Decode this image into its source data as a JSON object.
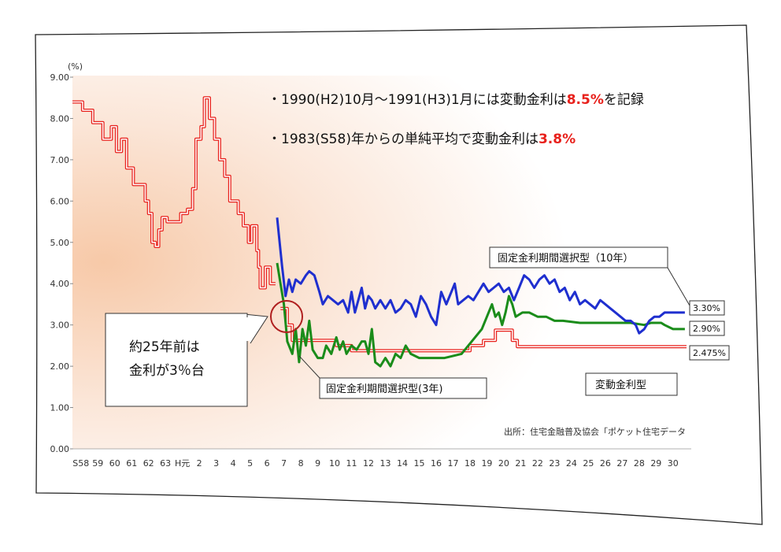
{
  "chart_data": {
    "type": "line",
    "yunit": "(%)",
    "yticks": [
      "9.00",
      "8.00",
      "7.00",
      "6.00",
      "5.00",
      "4.00",
      "3.00",
      "2.00",
      "1.00",
      "0.00"
    ],
    "xticks": [
      "S58",
      "59",
      "60",
      "61",
      "62",
      "63",
      "H元",
      "2",
      "3",
      "4",
      "5",
      "6",
      "7",
      "8",
      "9",
      "10",
      "11",
      "12",
      "13",
      "14",
      "15",
      "16",
      "17",
      "18",
      "19",
      "20",
      "21",
      "22",
      "23",
      "24",
      "25",
      "26",
      "27",
      "28",
      "29",
      "30"
    ],
    "ylim": [
      0,
      9
    ],
    "xlim": [
      1983,
      2019.3
    ],
    "series": [
      {
        "name": "変動金利型",
        "color": "#e8211c",
        "step": true,
        "points": [
          [
            1983.0,
            8.4
          ],
          [
            1983.6,
            8.2
          ],
          [
            1984.2,
            7.9
          ],
          [
            1984.8,
            7.5
          ],
          [
            1985.3,
            7.8
          ],
          [
            1985.6,
            7.2
          ],
          [
            1985.9,
            7.5
          ],
          [
            1986.2,
            6.8
          ],
          [
            1986.6,
            6.4
          ],
          [
            1987.3,
            6.0
          ],
          [
            1987.5,
            5.7
          ],
          [
            1987.7,
            5.0
          ],
          [
            1987.9,
            4.9
          ],
          [
            1988.1,
            5.3
          ],
          [
            1988.3,
            5.6
          ],
          [
            1988.6,
            5.5
          ],
          [
            1989.0,
            5.5
          ],
          [
            1989.4,
            5.7
          ],
          [
            1989.8,
            5.8
          ],
          [
            1990.1,
            6.3
          ],
          [
            1990.3,
            7.5
          ],
          [
            1990.6,
            7.8
          ],
          [
            1990.8,
            8.5
          ],
          [
            1991.1,
            8.0
          ],
          [
            1991.4,
            7.5
          ],
          [
            1991.7,
            7.0
          ],
          [
            1992.0,
            6.6
          ],
          [
            1992.3,
            6.0
          ],
          [
            1992.8,
            5.7
          ],
          [
            1993.1,
            5.4
          ],
          [
            1993.4,
            5.0
          ],
          [
            1993.6,
            5.4
          ],
          [
            1993.9,
            4.8
          ],
          [
            1994.0,
            4.4
          ],
          [
            1994.1,
            3.9
          ],
          [
            1994.4,
            4.4
          ],
          [
            1994.7,
            4.0
          ],
          [
            1995.0,
            4.0
          ]
        ]
      },
      {
        "name": "変動金利型",
        "color": "#e8211c",
        "step": true,
        "points": [
          [
            1995.3,
            3.4
          ],
          [
            1995.7,
            3.0
          ],
          [
            1996.0,
            2.625
          ],
          [
            1997.0,
            2.625
          ],
          [
            1998.0,
            2.625
          ],
          [
            1998.6,
            2.5
          ],
          [
            1999.5,
            2.375
          ],
          [
            2000.0,
            2.375
          ],
          [
            2001.5,
            2.375
          ],
          [
            2003.0,
            2.375
          ],
          [
            2005.0,
            2.375
          ],
          [
            2006.5,
            2.5
          ],
          [
            2007.3,
            2.625
          ],
          [
            2008.0,
            2.875
          ],
          [
            2009.0,
            2.625
          ],
          [
            2009.3,
            2.475
          ],
          [
            2012.0,
            2.475
          ],
          [
            2015.0,
            2.475
          ],
          [
            2018.0,
            2.475
          ],
          [
            2019.3,
            2.475
          ]
        ]
      },
      {
        "name": "固定金利期間選択型(3年)",
        "color": "#1a8c1a",
        "step": false,
        "points": [
          [
            1995.1,
            4.5
          ],
          [
            1995.3,
            4.0
          ],
          [
            1995.5,
            3.5
          ],
          [
            1995.7,
            2.6
          ],
          [
            1996.0,
            2.3
          ],
          [
            1996.2,
            2.9
          ],
          [
            1996.4,
            2.1
          ],
          [
            1996.6,
            2.9
          ],
          [
            1996.8,
            2.5
          ],
          [
            1997.0,
            3.1
          ],
          [
            1997.2,
            2.4
          ],
          [
            1997.5,
            2.2
          ],
          [
            1997.8,
            2.2
          ],
          [
            1998.0,
            2.5
          ],
          [
            1998.3,
            2.3
          ],
          [
            1998.6,
            2.7
          ],
          [
            1998.8,
            2.4
          ],
          [
            1999.0,
            2.6
          ],
          [
            1999.2,
            2.3
          ],
          [
            1999.5,
            2.5
          ],
          [
            1999.8,
            2.4
          ],
          [
            2000.1,
            2.6
          ],
          [
            2000.3,
            2.6
          ],
          [
            2000.5,
            2.3
          ],
          [
            2000.7,
            2.9
          ],
          [
            2000.9,
            2.1
          ],
          [
            2001.2,
            2.0
          ],
          [
            2001.5,
            2.2
          ],
          [
            2001.8,
            2.0
          ],
          [
            2002.1,
            2.3
          ],
          [
            2002.4,
            2.2
          ],
          [
            2002.7,
            2.5
          ],
          [
            2003.0,
            2.3
          ],
          [
            2003.5,
            2.2
          ],
          [
            2004.0,
            2.2
          ],
          [
            2005.0,
            2.2
          ],
          [
            2006.0,
            2.3
          ],
          [
            2006.4,
            2.5
          ],
          [
            2006.8,
            2.7
          ],
          [
            2007.2,
            2.9
          ],
          [
            2007.6,
            3.3
          ],
          [
            2007.8,
            3.5
          ],
          [
            2008.0,
            3.2
          ],
          [
            2008.2,
            3.3
          ],
          [
            2008.4,
            3.0
          ],
          [
            2008.6,
            3.3
          ],
          [
            2008.8,
            3.7
          ],
          [
            2009.0,
            3.5
          ],
          [
            2009.2,
            3.2
          ],
          [
            2009.6,
            3.3
          ],
          [
            2010.0,
            3.3
          ],
          [
            2010.5,
            3.2
          ],
          [
            2011.0,
            3.2
          ],
          [
            2011.5,
            3.1
          ],
          [
            2012.0,
            3.1
          ],
          [
            2013.0,
            3.05
          ],
          [
            2014.0,
            3.05
          ],
          [
            2015.0,
            3.05
          ],
          [
            2016.0,
            3.05
          ],
          [
            2016.8,
            3.0
          ],
          [
            2017.2,
            3.05
          ],
          [
            2017.8,
            3.05
          ],
          [
            2018.0,
            3.0
          ],
          [
            2018.5,
            2.9
          ],
          [
            2019.2,
            2.9
          ]
        ]
      },
      {
        "name": "固定金利期間選択型(10年)",
        "color": "#1f2fcf",
        "step": false,
        "points": [
          [
            1995.1,
            5.6
          ],
          [
            1995.2,
            5.2
          ],
          [
            1995.4,
            4.4
          ],
          [
            1995.6,
            3.7
          ],
          [
            1995.8,
            4.1
          ],
          [
            1996.0,
            3.8
          ],
          [
            1996.2,
            4.1
          ],
          [
            1996.5,
            4.0
          ],
          [
            1996.8,
            4.2
          ],
          [
            1997.0,
            4.3
          ],
          [
            1997.3,
            4.2
          ],
          [
            1997.6,
            3.8
          ],
          [
            1997.8,
            3.5
          ],
          [
            1998.1,
            3.7
          ],
          [
            1998.4,
            3.6
          ],
          [
            1998.7,
            3.5
          ],
          [
            1999.0,
            3.6
          ],
          [
            1999.3,
            3.3
          ],
          [
            1999.5,
            3.8
          ],
          [
            1999.7,
            3.3
          ],
          [
            1999.9,
            3.6
          ],
          [
            2000.1,
            3.9
          ],
          [
            2000.3,
            3.4
          ],
          [
            2000.5,
            3.7
          ],
          [
            2000.7,
            3.6
          ],
          [
            2000.9,
            3.4
          ],
          [
            2001.2,
            3.6
          ],
          [
            2001.5,
            3.4
          ],
          [
            2001.8,
            3.6
          ],
          [
            2002.1,
            3.3
          ],
          [
            2002.4,
            3.4
          ],
          [
            2002.7,
            3.6
          ],
          [
            2003.0,
            3.5
          ],
          [
            2003.3,
            3.2
          ],
          [
            2003.6,
            3.7
          ],
          [
            2003.9,
            3.5
          ],
          [
            2004.2,
            3.2
          ],
          [
            2004.5,
            3.0
          ],
          [
            2004.8,
            3.8
          ],
          [
            2005.1,
            3.5
          ],
          [
            2005.4,
            3.8
          ],
          [
            2005.6,
            4.0
          ],
          [
            2005.8,
            3.5
          ],
          [
            2006.1,
            3.6
          ],
          [
            2006.4,
            3.7
          ],
          [
            2006.7,
            3.6
          ],
          [
            2007.0,
            3.8
          ],
          [
            2007.3,
            4.0
          ],
          [
            2007.6,
            3.8
          ],
          [
            2007.9,
            3.9
          ],
          [
            2008.2,
            4.0
          ],
          [
            2008.5,
            3.8
          ],
          [
            2008.8,
            3.9
          ],
          [
            2009.1,
            3.6
          ],
          [
            2009.4,
            3.9
          ],
          [
            2009.7,
            4.2
          ],
          [
            2010.0,
            4.1
          ],
          [
            2010.3,
            3.9
          ],
          [
            2010.6,
            4.1
          ],
          [
            2010.9,
            4.2
          ],
          [
            2011.2,
            4.0
          ],
          [
            2011.5,
            4.1
          ],
          [
            2011.8,
            3.8
          ],
          [
            2012.1,
            3.9
          ],
          [
            2012.4,
            3.6
          ],
          [
            2012.7,
            3.8
          ],
          [
            2013.0,
            3.5
          ],
          [
            2013.3,
            3.6
          ],
          [
            2013.6,
            3.5
          ],
          [
            2013.9,
            3.4
          ],
          [
            2014.2,
            3.6
          ],
          [
            2014.5,
            3.5
          ],
          [
            2014.8,
            3.4
          ],
          [
            2015.1,
            3.3
          ],
          [
            2015.4,
            3.2
          ],
          [
            2015.7,
            3.1
          ],
          [
            2016.0,
            3.1
          ],
          [
            2016.3,
            3.0
          ],
          [
            2016.5,
            2.8
          ],
          [
            2016.8,
            2.9
          ],
          [
            2017.1,
            3.1
          ],
          [
            2017.4,
            3.2
          ],
          [
            2017.7,
            3.2
          ],
          [
            2018.0,
            3.3
          ],
          [
            2018.5,
            3.3
          ],
          [
            2019.2,
            3.3
          ]
        ]
      }
    ]
  },
  "notes": {
    "line1_pre": "・1990(H2)10月～1991(H3)1月には変動金利は",
    "line1_red": "8.5%",
    "line1_post": "を記録",
    "line2_pre": "・1983(S58)年からの単純平均で変動金利は",
    "line2_red": "3.8%"
  },
  "labels": {
    "fixed10": "固定金利期間選択型（10年）",
    "fixed3": "固定金利期間選択型(3年)",
    "variable": "変動金利型"
  },
  "end_values": {
    "blue": "3.30%",
    "green": "2.90%",
    "red": "2.475%"
  },
  "source": "出所：住宅金融普及協会「ポケット住宅データ",
  "callout": {
    "line1": "約25年前は",
    "line2": "金利が3％台"
  }
}
